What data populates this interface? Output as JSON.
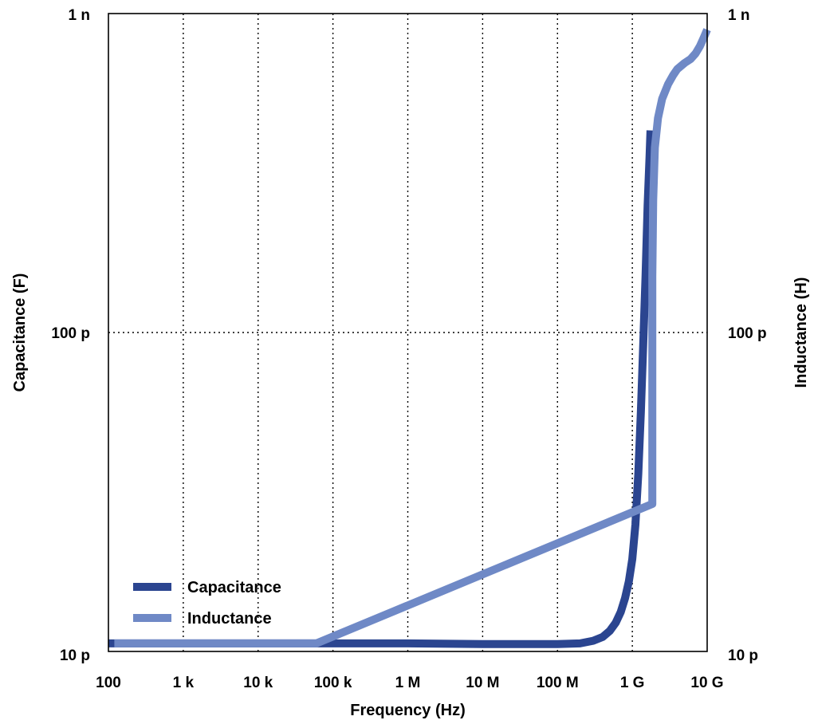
{
  "chart_data": {
    "type": "line",
    "xlabel": "Frequency (Hz)",
    "ylabel_left": "Capacitance (F)",
    "ylabel_right": "Inductance (H)",
    "x_scale": "log",
    "y_scale": "log",
    "xlim": [
      100,
      10000000000
    ],
    "ylim": [
      1e-11,
      1e-09
    ],
    "x_ticks": [
      {
        "value": 100,
        "label": "100"
      },
      {
        "value": 1000,
        "label": "1 k"
      },
      {
        "value": 10000,
        "label": "10 k"
      },
      {
        "value": 100000,
        "label": "100 k"
      },
      {
        "value": 1000000,
        "label": "1 M"
      },
      {
        "value": 10000000,
        "label": "10 M"
      },
      {
        "value": 100000000,
        "label": "100 M"
      },
      {
        "value": 1000000000,
        "label": "1 G"
      },
      {
        "value": 10000000000,
        "label": "10 G"
      }
    ],
    "y_ticks_left": [
      {
        "value": 1e-11,
        "label": "10 p"
      },
      {
        "value": 1e-10,
        "label": "100 p"
      },
      {
        "value": 1e-09,
        "label": "1 n"
      }
    ],
    "y_ticks_right": [
      {
        "value": 1e-11,
        "label": "10 p"
      },
      {
        "value": 1e-10,
        "label": "100 p"
      },
      {
        "value": 1e-09,
        "label": "1 n"
      }
    ],
    "grid": true,
    "legend_position": "bottom-left",
    "series": [
      {
        "name": "Capacitance",
        "color": "#2b4590",
        "x": [
          100,
          1000,
          10000,
          100000,
          1000000,
          10000000,
          100000000,
          200000000,
          300000000,
          400000000,
          500000000,
          600000000,
          700000000,
          800000000,
          900000000,
          1000000000,
          1100000000,
          1200000000,
          1300000000,
          1400000000,
          1500000000,
          1600000000,
          1700000000,
          1750000000
        ],
        "y": [
          1.06e-11,
          1.06e-11,
          1.06e-11,
          1.06e-11,
          1.06e-11,
          1.055e-11,
          1.055e-11,
          1.06e-11,
          1.08e-11,
          1.11e-11,
          1.16e-11,
          1.23e-11,
          1.33e-11,
          1.47e-11,
          1.66e-11,
          1.95e-11,
          2.5e-11,
          3.6e-11,
          5.6e-11,
          9.2e-11,
          1.5e-10,
          2.5e-10,
          3.6e-10,
          4.3e-10
        ]
      },
      {
        "name": "Inductance",
        "color": "#6f89c6",
        "x": [
          120,
          250,
          1000,
          10000,
          60000,
          1850000000,
          1850000000,
          1900000000,
          2000000000,
          2200000000,
          2500000000,
          3000000000,
          3500000000,
          4000000000,
          5000000000,
          6000000000,
          7000000000,
          8000000000,
          9000000000,
          10000000000
        ],
        "y": [
          1.06e-11,
          1.06e-11,
          1.06e-11,
          1.06e-11,
          1.06e-11,
          2.9e-11,
          1.5e-10,
          2.6e-10,
          3.8e-10,
          4.7e-10,
          5.4e-10,
          6e-10,
          6.4e-10,
          6.7e-10,
          7e-10,
          7.2e-10,
          7.5e-10,
          7.9e-10,
          8.4e-10,
          8.9e-10
        ]
      }
    ]
  }
}
